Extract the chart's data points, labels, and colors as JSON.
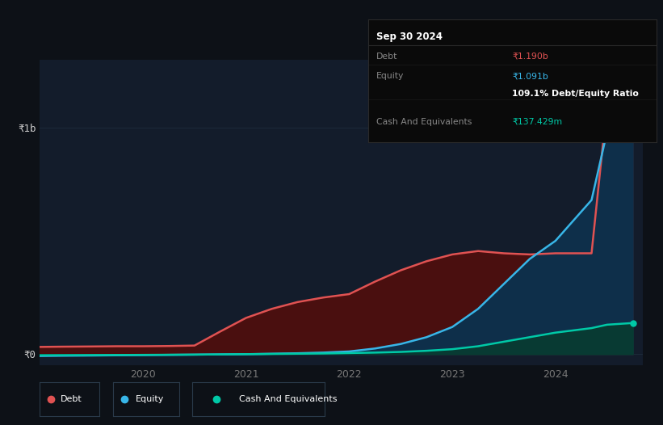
{
  "background_color": "#0d1117",
  "plot_bg_color": "#131c2b",
  "grid_color": "#1e2d3d",
  "title_box_bg": "#0a0a0a",
  "title_box_border": "#2a2a2a",
  "ylim": [
    -50000000,
    1300000000
  ],
  "y_tick_labels": [
    "₹0",
    "₹1b"
  ],
  "y_tick_values": [
    0,
    1000000000
  ],
  "x_tick_labels": [
    "2020",
    "2021",
    "2022",
    "2023",
    "2024"
  ],
  "x_tick_values": [
    2020,
    2021,
    2022,
    2023,
    2024
  ],
  "debt_color": "#e05252",
  "equity_color": "#38b6e8",
  "cash_color": "#00c9a7",
  "debt_fill_color": "#4a0f0f",
  "equity_fill_color": "#0e2f4a",
  "cash_fill_color": "#073d30",
  "legend": [
    {
      "label": "Debt",
      "color": "#e05252"
    },
    {
      "label": "Equity",
      "color": "#38b6e8"
    },
    {
      "label": "Cash And Equivalents",
      "color": "#00c9a7"
    }
  ],
  "time_points": [
    2019.0,
    2019.2,
    2019.5,
    2019.75,
    2020.0,
    2020.25,
    2020.5,
    2020.75,
    2021.0,
    2021.25,
    2021.5,
    2021.75,
    2022.0,
    2022.25,
    2022.5,
    2022.75,
    2023.0,
    2023.25,
    2023.5,
    2023.75,
    2024.0,
    2024.35,
    2024.5,
    2024.75
  ],
  "debt_values": [
    32000000,
    33000000,
    34000000,
    35000000,
    35000000,
    36000000,
    38000000,
    100000000,
    160000000,
    200000000,
    230000000,
    250000000,
    265000000,
    320000000,
    370000000,
    410000000,
    440000000,
    455000000,
    445000000,
    440000000,
    445000000,
    445000000,
    1100000000,
    1190000000
  ],
  "equity_values": [
    -8000000,
    -7000000,
    -6000000,
    -5000000,
    -4000000,
    -3000000,
    -2000000,
    -1000000,
    0,
    2000000,
    4000000,
    7000000,
    12000000,
    25000000,
    45000000,
    75000000,
    120000000,
    200000000,
    310000000,
    420000000,
    500000000,
    680000000,
    980000000,
    1091000000
  ],
  "cash_values": [
    -5000000,
    -4500000,
    -4000000,
    -3500000,
    -3000000,
    -2500000,
    -2000000,
    -1000000,
    0,
    1000000,
    2000000,
    3000000,
    5000000,
    7000000,
    10000000,
    15000000,
    22000000,
    35000000,
    55000000,
    75000000,
    95000000,
    115000000,
    130000000,
    137429000
  ],
  "info_date": "Sep 30 2024",
  "info_rows": [
    {
      "label": "Debt",
      "value": "₹1.190b",
      "value_color": "#e05252"
    },
    {
      "label": "Equity",
      "value": "₹1.091b",
      "value_color": "#38b6e8"
    },
    {
      "label": "",
      "value": "109.1% Debt/Equity Ratio",
      "value_color": "#ffffff",
      "bold": true
    },
    {
      "label": "Cash And Equivalents",
      "value": "₹137.429m",
      "value_color": "#00c9a7"
    }
  ]
}
